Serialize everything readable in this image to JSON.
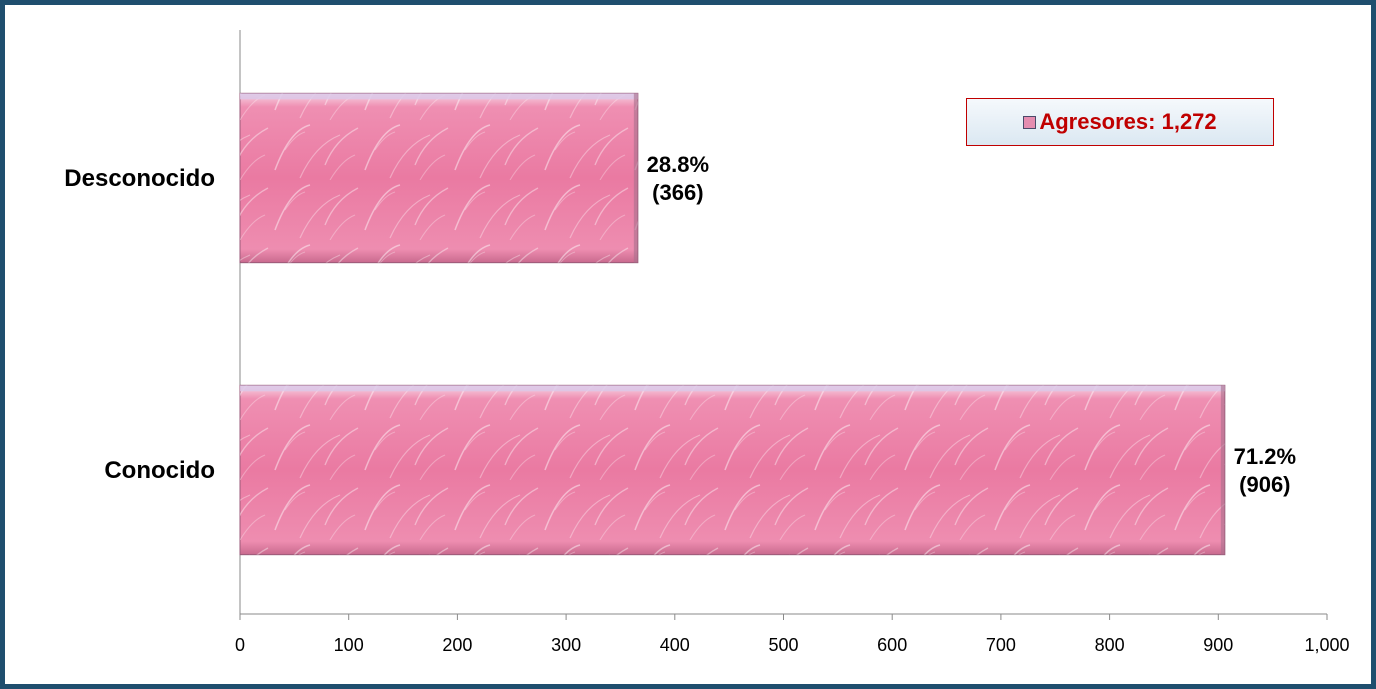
{
  "chart_data": {
    "type": "bar",
    "orientation": "horizontal",
    "categories": [
      "Desconocido",
      "Conocido"
    ],
    "series": [
      {
        "name": "Agresores: 1,272",
        "values": [
          366,
          906
        ],
        "labels": [
          {
            "pct": "28.8%",
            "count": "(366)"
          },
          {
            "pct": "71.2%",
            "count": "(906)"
          }
        ]
      }
    ],
    "xlim": [
      0,
      1000
    ],
    "xticks": [
      0,
      100,
      200,
      300,
      400,
      500,
      600,
      700,
      800,
      900,
      1000
    ],
    "xtick_labels": [
      "0",
      "100",
      "200",
      "300",
      "400",
      "500",
      "600",
      "700",
      "800",
      "900",
      "1,000"
    ],
    "title": "",
    "xlabel": "",
    "ylabel": "",
    "grid": false,
    "legend_position": "top-right",
    "colors": {
      "bar": "#ec7fa6",
      "bar_light": "#f6b9cf",
      "legend_text": "#c00000",
      "frame": "#1f4e6e"
    }
  }
}
